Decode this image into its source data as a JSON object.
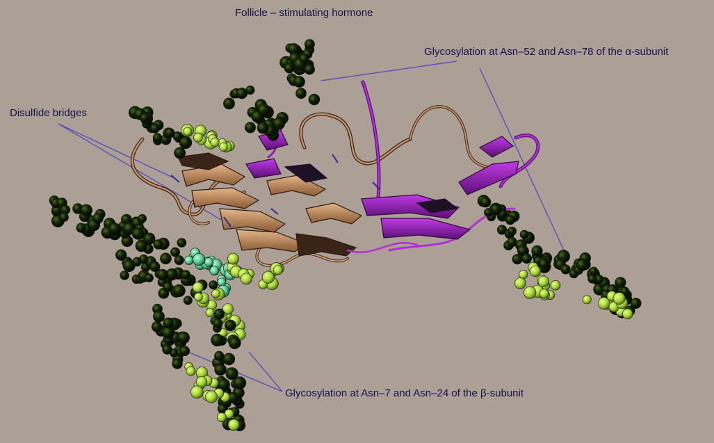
{
  "title": "Follicle – stimulating hormone",
  "labels": {
    "alpha_glycosylation": "Glycosylation at Asn–52 and Asn–78 of the α-subunit",
    "disulfide": "Disulfide bridges",
    "beta_glycosylation": "Glycosylation at Asn–7 and Asn–24 of the β-subunit"
  },
  "colors": {
    "background": "#aca096",
    "label_text": "#14124a",
    "leader_line": "#5a4fb8",
    "alpha_subunit": "#8a1fa8",
    "beta_subunit": "#c49366",
    "beta_dark": "#3a2418",
    "glycan_dark": "#0b1a06",
    "glycan_light": "#b6e04a",
    "glycan_teal": "#5fc79a",
    "disulfide_bond": "#2a2f8c"
  }
}
